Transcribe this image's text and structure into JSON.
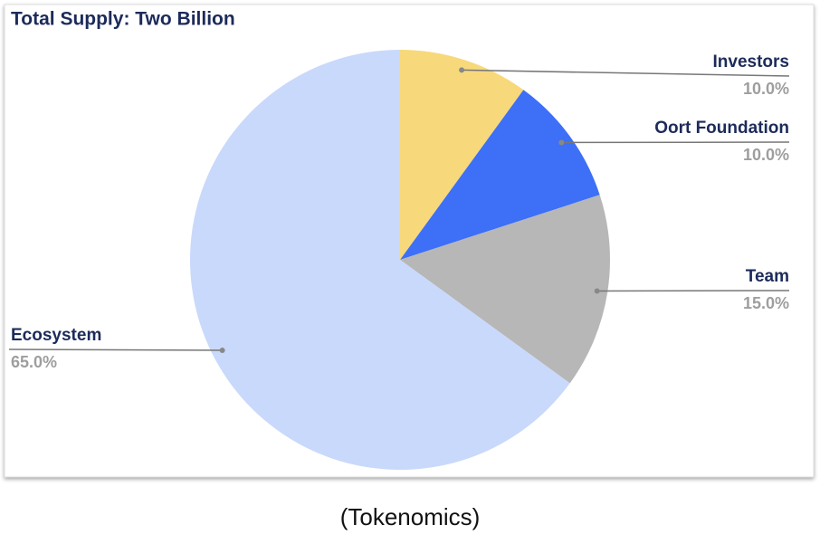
{
  "chart_data": {
    "type": "pie",
    "title": "Total Supply: Two Billion",
    "categories": [
      "Investors",
      "Oort Foundation",
      "Team",
      "Ecosystem"
    ],
    "values": [
      10,
      10,
      15,
      65
    ],
    "value_labels": [
      "10.0%",
      "10.0%",
      "15.0%",
      "65.0%"
    ],
    "colors": [
      "#f7d97b",
      "#3d6ff7",
      "#b7b7b7",
      "#c9d9fb"
    ],
    "caption": "(Tokenomics)"
  }
}
